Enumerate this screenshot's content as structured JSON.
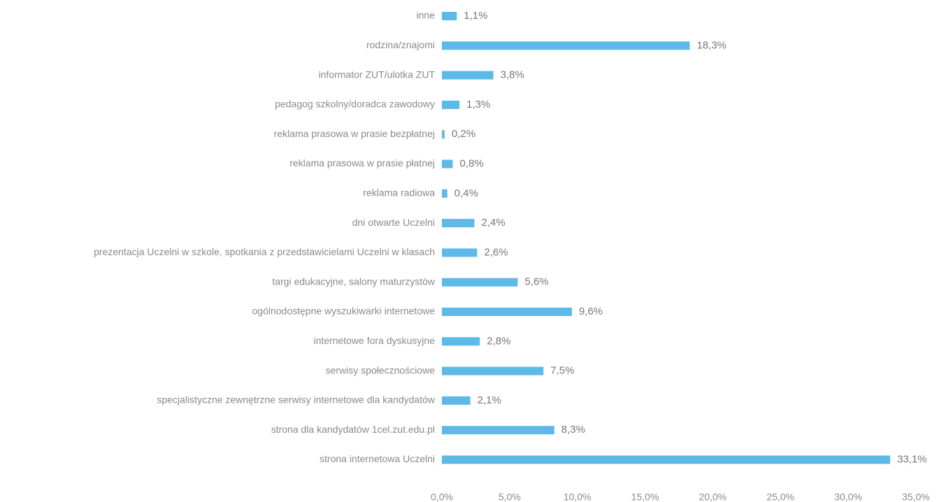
{
  "chart_data": {
    "type": "barh",
    "categories": [
      "inne",
      "rodzina/znajomi",
      "informator ZUT/ulotka ZUT",
      "pedagog szkolny/doradca zawodowy",
      "reklama prasowa w prasie bezpłatnej",
      "reklama prasowa w prasie płatnej",
      "reklama radiowa",
      "dni otwarte Uczelni",
      "prezentacja Uczelni w szkole, spotkania z przedstawicielami Uczelni w klasach",
      "targi edukacyjne, salony maturzystów",
      "ogólnodostępne wyszukiwarki internetowe",
      "internetowe fora dyskusyjne",
      "serwisy społecznościowe",
      "specjalistyczne zewnętrzne serwisy internetowe dla kandydatów",
      "strona dla kandydatów 1cel.zut.edu.pl",
      "strona internetowa Uczelni"
    ],
    "values": [
      1.1,
      18.3,
      3.8,
      1.3,
      0.2,
      0.8,
      0.4,
      2.4,
      2.6,
      5.6,
      9.6,
      2.8,
      7.5,
      2.1,
      8.3,
      33.1
    ],
    "value_labels": [
      "1,1%",
      "18,3%",
      "3,8%",
      "1,3%",
      "0,2%",
      "0,8%",
      "0,4%",
      "2,4%",
      "2,6%",
      "5,6%",
      "9,6%",
      "2,8%",
      "7,5%",
      "2,1%",
      "8,3%",
      "33,1%"
    ],
    "color": "#5db9e8",
    "xlim": [
      0,
      35
    ],
    "xticks": [
      {
        "value": 0,
        "label": "0,0%"
      },
      {
        "value": 5,
        "label": "5,0%"
      },
      {
        "value": 10,
        "label": "10,0%"
      },
      {
        "value": 15,
        "label": "15,0%"
      },
      {
        "value": 20,
        "label": "20,0%"
      },
      {
        "value": 25,
        "label": "25,0%"
      },
      {
        "value": 30,
        "label": "30,0%"
      },
      {
        "value": 35,
        "label": "35,0%"
      }
    ]
  }
}
